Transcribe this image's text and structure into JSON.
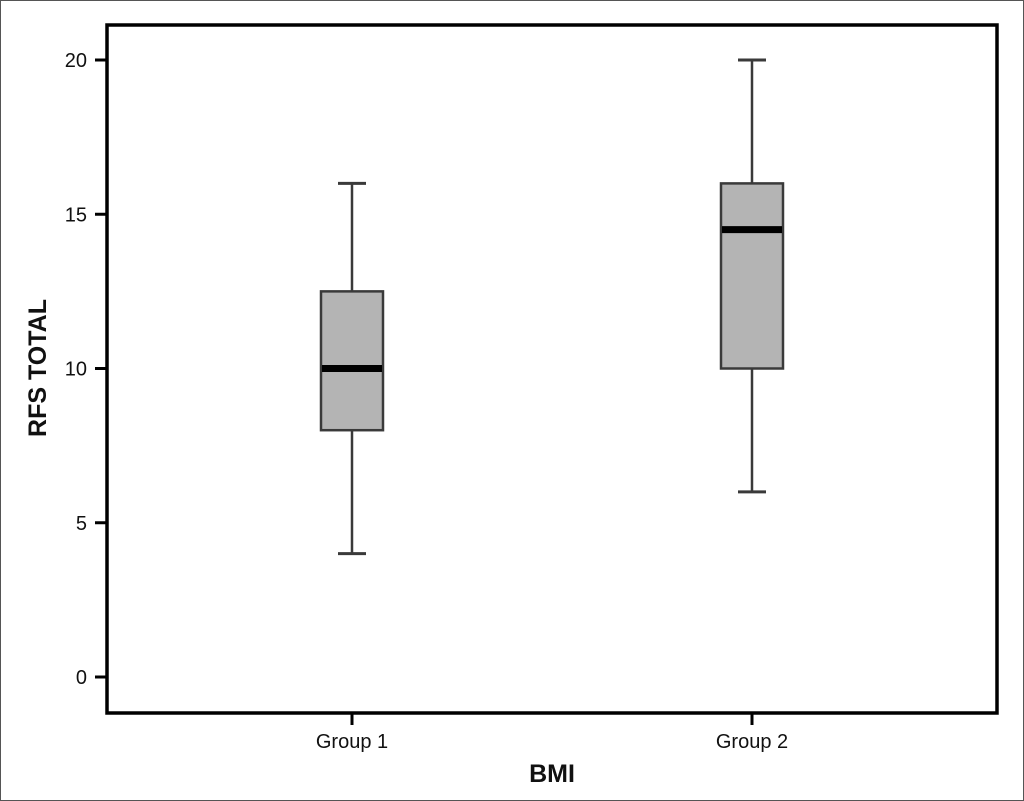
{
  "chart_data": {
    "type": "boxplot",
    "xlabel": "BMI",
    "ylabel": "RFS TOTAL",
    "ylim": [
      0,
      20
    ],
    "yticks": [
      0,
      5,
      10,
      15,
      20
    ],
    "grid": false,
    "categories": [
      "Group 1",
      "Group 2"
    ],
    "boxes": [
      {
        "category": "Group 1",
        "min": 4,
        "q1": 8,
        "median": 10,
        "q3": 12.5,
        "max": 16
      },
      {
        "category": "Group 2",
        "min": 6,
        "q1": 10,
        "median": 14.5,
        "q3": 16,
        "max": 20
      }
    ],
    "box_fill": "#b4b4b4",
    "line_color": "#3a3a3a",
    "median_color": "#000000"
  }
}
